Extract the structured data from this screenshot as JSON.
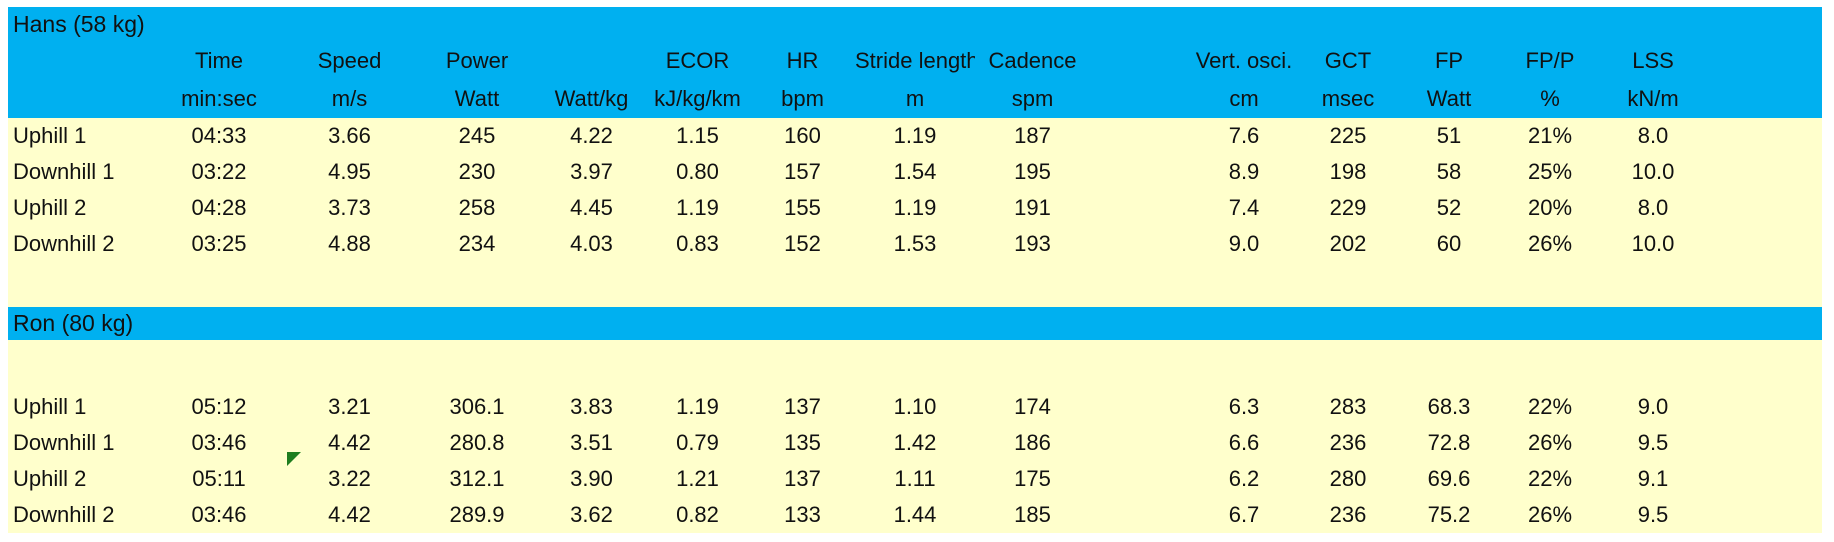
{
  "colors": {
    "band_blue": "#00B0F0",
    "row_yellow": "#FFFFCC",
    "flag_green": "#1E7D1E"
  },
  "table": {
    "columns": [
      {
        "label": "",
        "unit": ""
      },
      {
        "label": "Time",
        "unit": "min:sec"
      },
      {
        "label": "Speed",
        "unit": "m/s"
      },
      {
        "label": "Power",
        "unit": "Watt"
      },
      {
        "label": "",
        "unit": "Watt/kg"
      },
      {
        "label": "ECOR",
        "unit": "kJ/kg/km"
      },
      {
        "label": "HR",
        "unit": "bpm"
      },
      {
        "label": "Stride length",
        "unit": "m"
      },
      {
        "label": "Cadence",
        "unit": "spm"
      },
      {
        "label": "",
        "unit": ""
      },
      {
        "label": "Vert. osci.",
        "unit": "cm"
      },
      {
        "label": "GCT",
        "unit": "msec"
      },
      {
        "label": "FP",
        "unit": "Watt"
      },
      {
        "label": "FP/P",
        "unit": "%"
      },
      {
        "label": "LSS",
        "unit": "kN/m"
      },
      {
        "label": "",
        "unit": ""
      }
    ],
    "sections": [
      {
        "title": "Hans (58 kg)",
        "rows": [
          [
            "Uphill 1",
            "04:33",
            "3.66",
            "245",
            "4.22",
            "1.15",
            "160",
            "1.19",
            "187",
            "",
            "7.6",
            "225",
            "51",
            "21%",
            "8.0",
            ""
          ],
          [
            "Downhill 1",
            "03:22",
            "4.95",
            "230",
            "3.97",
            "0.80",
            "157",
            "1.54",
            "195",
            "",
            "8.9",
            "198",
            "58",
            "25%",
            "10.0",
            ""
          ],
          [
            "Uphill 2",
            "04:28",
            "3.73",
            "258",
            "4.45",
            "1.19",
            "155",
            "1.19",
            "191",
            "",
            "7.4",
            "229",
            "52",
            "20%",
            "8.0",
            ""
          ],
          [
            "Downhill 2",
            "03:25",
            "4.88",
            "234",
            "4.03",
            "0.83",
            "152",
            "1.53",
            "193",
            "",
            "9.0",
            "202",
            "60",
            "26%",
            "10.0",
            ""
          ]
        ]
      },
      {
        "title": "Ron (80 kg)",
        "rows": [
          [
            "Uphill 1",
            "05:12",
            "3.21",
            "306.1",
            "3.83",
            "1.19",
            "137",
            "1.10",
            "174",
            "",
            "6.3",
            "283",
            "68.3",
            "22%",
            "9.0",
            ""
          ],
          [
            "Downhill 1",
            "03:46",
            "4.42",
            "280.8",
            "3.51",
            "0.79",
            "135",
            "1.42",
            "186",
            "",
            "6.6",
            "236",
            "72.8",
            "26%",
            "9.5",
            ""
          ],
          [
            "Uphill 2",
            "05:11",
            "3.22",
            "312.1",
            "3.90",
            "1.21",
            "137",
            "1.11",
            "175",
            "",
            "6.2",
            "280",
            "69.6",
            "22%",
            "9.1",
            ""
          ],
          [
            "Downhill 2",
            "03:46",
            "4.42",
            "289.9",
            "3.62",
            "0.82",
            "133",
            "1.44",
            "185",
            "",
            "6.7",
            "236",
            "75.2",
            "26%",
            "9.5",
            ""
          ]
        ]
      }
    ]
  }
}
